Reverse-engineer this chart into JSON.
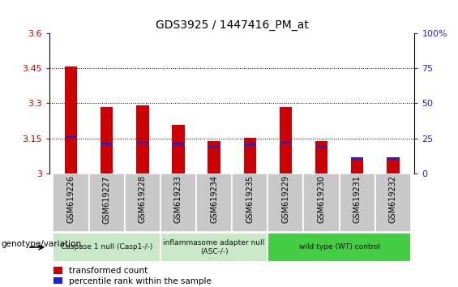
{
  "title": "GDS3925 / 1447416_PM_at",
  "samples": [
    "GSM619226",
    "GSM619227",
    "GSM619228",
    "GSM619233",
    "GSM619234",
    "GSM619235",
    "GSM619229",
    "GSM619230",
    "GSM619231",
    "GSM619232"
  ],
  "red_values": [
    3.458,
    3.284,
    3.292,
    3.208,
    3.138,
    3.153,
    3.284,
    3.138,
    3.068,
    3.068
  ],
  "blue_values": [
    3.152,
    3.122,
    3.128,
    3.122,
    3.11,
    3.118,
    3.128,
    3.11,
    3.06,
    3.06
  ],
  "ylim": [
    3.0,
    3.6
  ],
  "yticks": [
    3.0,
    3.15,
    3.3,
    3.45,
    3.6
  ],
  "ytick_labels": [
    "3",
    "3.15",
    "3.3",
    "3.45",
    "3.6"
  ],
  "right_yticks_pct": [
    0,
    25,
    50,
    75,
    100
  ],
  "right_ytick_labels": [
    "0",
    "25",
    "50",
    "75",
    "100%"
  ],
  "gridlines": [
    3.15,
    3.3,
    3.45
  ],
  "bar_width": 0.35,
  "red_color": "#cc0000",
  "blue_color": "#2222cc",
  "bg_color": "#ffffff",
  "legend_red": "transformed count",
  "legend_blue": "percentile rank within the sample",
  "group_configs": [
    {
      "indices": [
        0,
        1,
        2
      ],
      "label": "Caspase 1 null (Casp1-/-)",
      "color": "#c8e8c8"
    },
    {
      "indices": [
        3,
        4,
        5
      ],
      "label": "inflammasome adapter null\n(ASC-/-)",
      "color": "#c8e8c8"
    },
    {
      "indices": [
        6,
        7,
        8,
        9
      ],
      "label": "wild type (WT) control",
      "color": "#44cc44"
    }
  ],
  "genotype_label": "genotype/variation",
  "cell_color": "#c8c8c8",
  "cell_border": "#ffffff"
}
